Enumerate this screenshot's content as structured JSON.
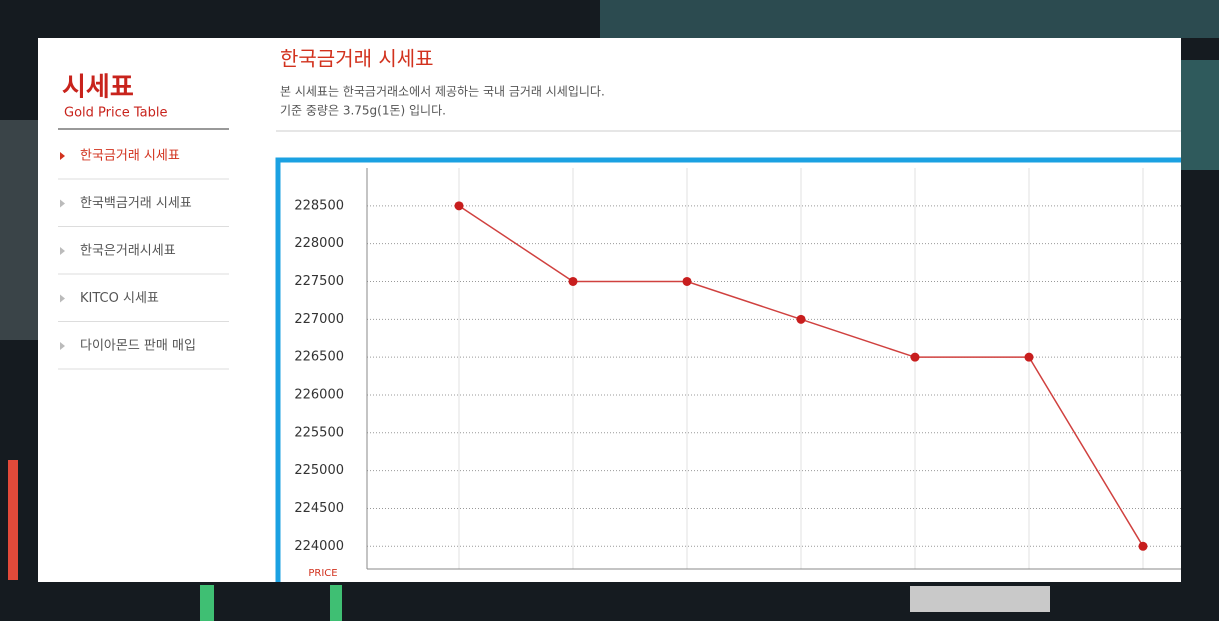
{
  "sidebar": {
    "title": "시세표",
    "subtitle": "Gold Price Table",
    "menu": [
      "한국금거래 시세표",
      "한국백금거래 시세표",
      "한국은거래시세표",
      "KITCO 시세표",
      "다이아몬드 판매 매입"
    ]
  },
  "header": {
    "title": "한국금거래 시세표",
    "lines": [
      "본 시세표는 한국금거래소에서 제공하는 국내 금거래 시세입니다.",
      "기준 중량은 3.75g(1돈) 입니다."
    ]
  },
  "chart_data": {
    "type": "line",
    "ylabel": "PRICE",
    "categories": [
      null,
      null,
      null,
      null,
      null,
      null,
      null
    ],
    "values": [
      228500,
      227500,
      227500,
      227000,
      226500,
      226500,
      224000
    ],
    "color": "#d0413f",
    "ylim": [
      223700,
      229000
    ],
    "yticks": [
      224000,
      224500,
      225000,
      225500,
      226000,
      226500,
      227000,
      227500,
      228000,
      228500
    ],
    "grid": true
  }
}
